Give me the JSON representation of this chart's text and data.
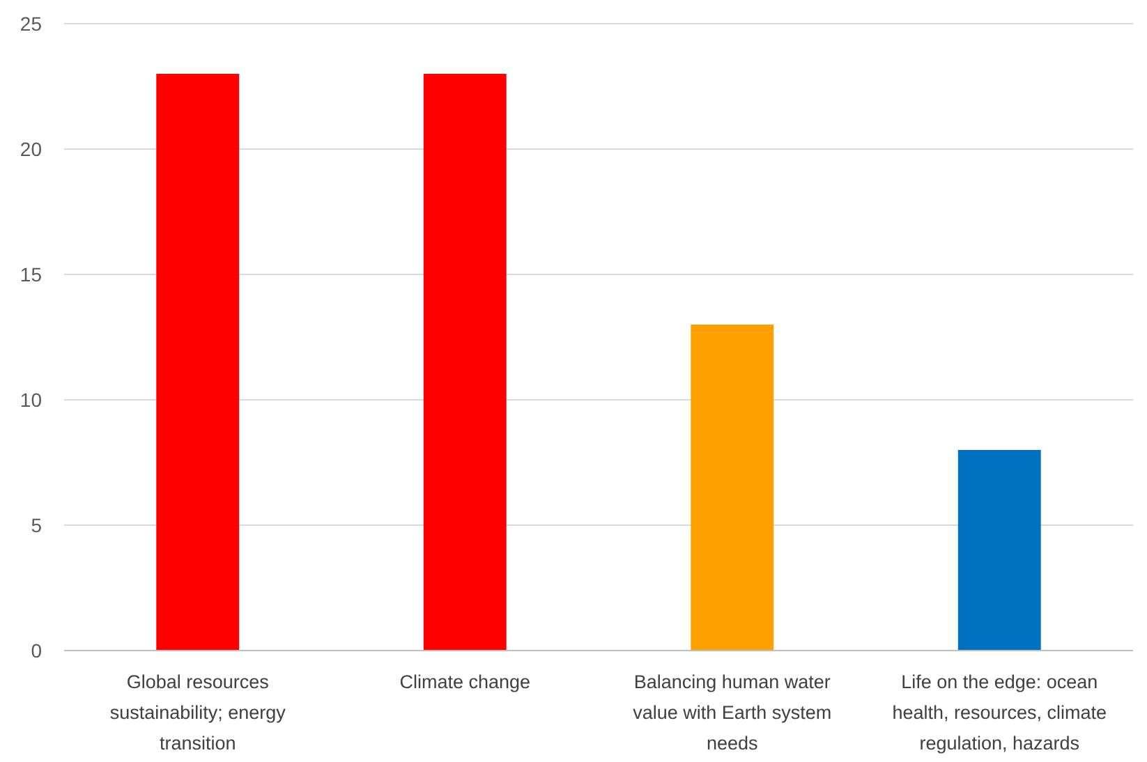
{
  "chart_data": {
    "type": "bar",
    "categories": [
      "Global resources sustainability; energy transition",
      "Climate change",
      "Balancing human water value with Earth system needs",
      "Life on the edge: ocean health, resources, climate regulation, hazards"
    ],
    "values": [
      23,
      23,
      13,
      8
    ],
    "colors": [
      "#ff0000",
      "#ff0000",
      "#ffa000",
      "#0070c0"
    ],
    "ylim": [
      0,
      25
    ],
    "yticks": [
      0,
      5,
      10,
      15,
      20,
      25
    ],
    "grid": "y"
  }
}
